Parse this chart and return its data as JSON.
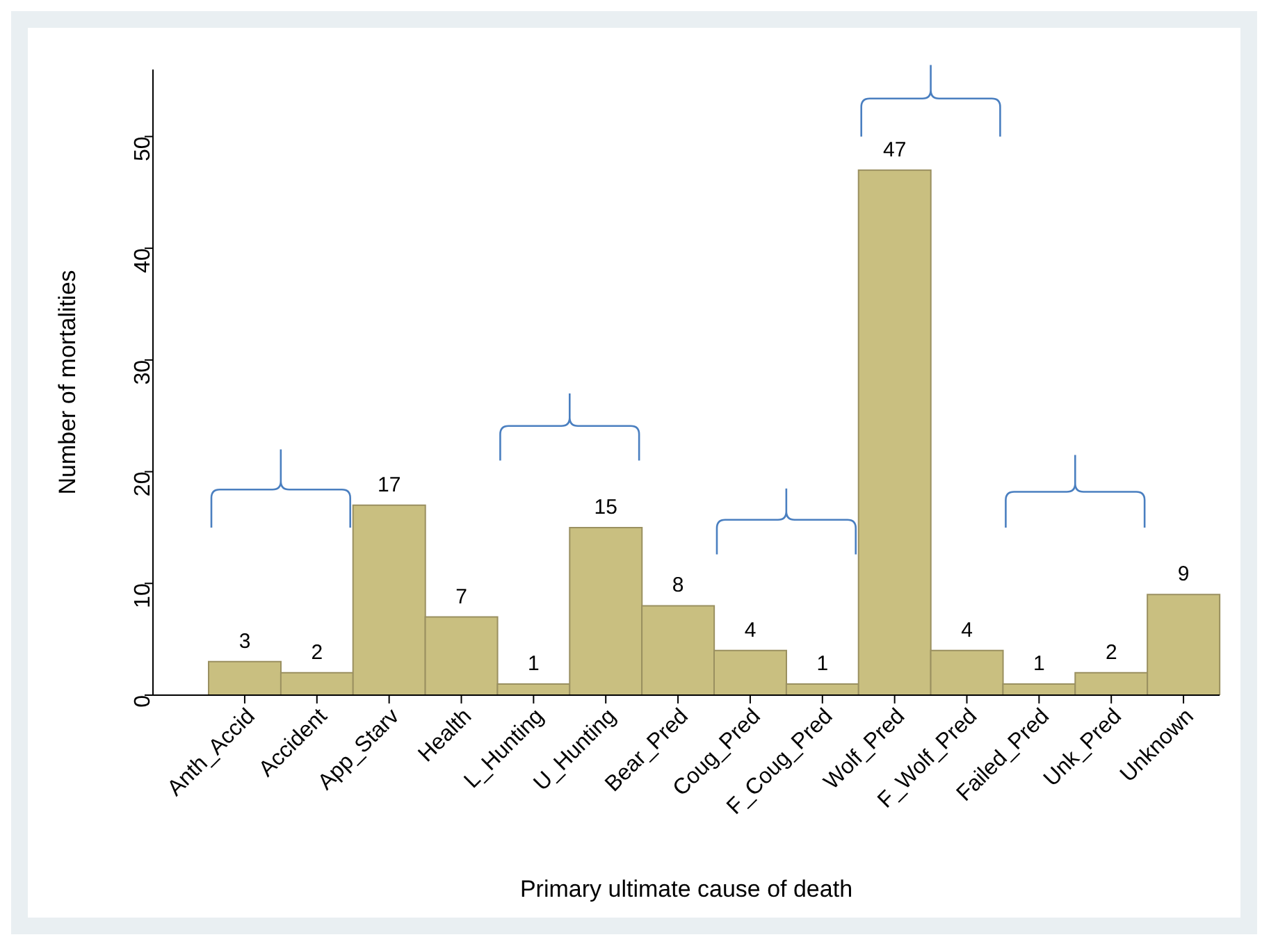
{
  "chart_data": {
    "type": "bar",
    "xlabel": "Primary ultimate cause of death",
    "ylabel": "Number of mortalities",
    "categories": [
      "Anth_Accid",
      "Accident",
      "App_Starv",
      "Health",
      "L_Hunting",
      "U_Hunting",
      "Bear_Pred",
      "Coug_Pred",
      "F_Coug_Pred",
      "Wolf_Pred",
      "F_Wolf_Pred",
      "Failed_Pred",
      "Unk_Pred",
      "Unknown"
    ],
    "values": [
      3,
      2,
      17,
      7,
      1,
      15,
      8,
      4,
      1,
      47,
      4,
      1,
      2,
      9
    ],
    "color": "#c9bf80",
    "ylim": [
      0,
      56
    ],
    "yticks": [
      0,
      10,
      20,
      30,
      40,
      50
    ],
    "data_labels": true
  }
}
